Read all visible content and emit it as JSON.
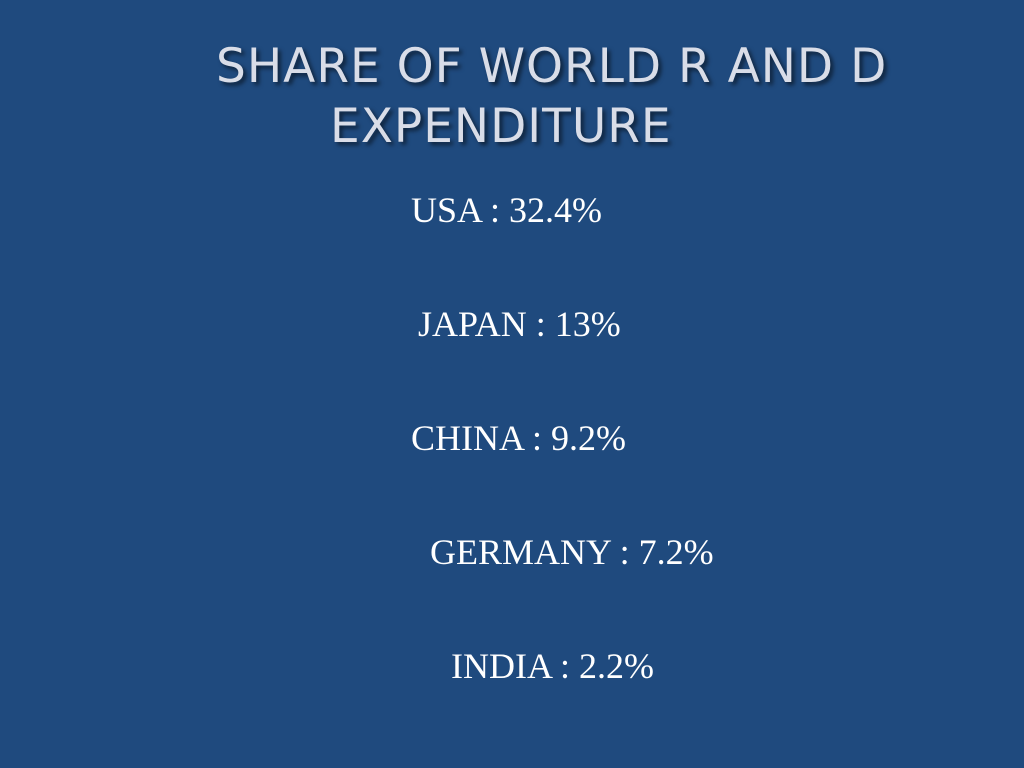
{
  "slide": {
    "title_line_1": "SHARE OF WORLD R AND D",
    "title_line_2": "EXPENDITURE",
    "entries": [
      "USA : 32.4%",
      "JAPAN : 13%",
      "CHINA : 9.2%",
      "GERMANY : 7.2%",
      "INDIA : 2.2%"
    ],
    "colors": {
      "background": "#1f4a7e",
      "title_text": "#d9dde8",
      "body_text": "#ffffff"
    }
  }
}
